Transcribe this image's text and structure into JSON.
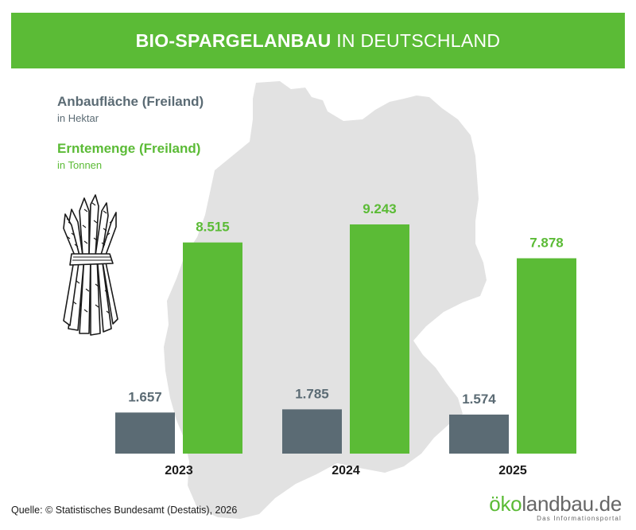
{
  "header": {
    "title_bold": "BIO-SPARGELANBAU",
    "title_rest": "IN DEUTSCHLAND"
  },
  "legend": {
    "area_label": "Anbaufläche (Freiland)",
    "area_unit": "in Hektar",
    "harvest_label": "Erntemenge (Freiland)",
    "harvest_unit": "in Tonnen"
  },
  "colors": {
    "banner": "#5bbb36",
    "area_bar": "#5b6b74",
    "harvest_bar": "#5bbb36",
    "map": "#e2e2e2"
  },
  "chart_data": {
    "type": "bar",
    "title": "BIO-SPARGELANBAU IN DEUTSCHLAND",
    "categories": [
      "2023",
      "2024",
      "2025"
    ],
    "series": [
      {
        "name": "Anbaufläche (Freiland)",
        "unit": "in Hektar",
        "values": [
          1657,
          1785,
          1574
        ],
        "labels": [
          "1.657",
          "1.785",
          "1.574"
        ]
      },
      {
        "name": "Erntemenge (Freiland)",
        "unit": "in Tonnen",
        "values": [
          8515,
          9243,
          7878
        ],
        "labels": [
          "8.515",
          "9.243",
          "7.878"
        ]
      }
    ]
  },
  "footer": {
    "source": "Quelle: © Statistisches Bundesamt (Destatis), 2026"
  },
  "logo": {
    "part1": "öko",
    "part2": "landbau.de",
    "tagline": "Das Informationsportal"
  },
  "icons": {
    "illustration": "asparagus-bundle-icon",
    "background": "germany-map"
  }
}
